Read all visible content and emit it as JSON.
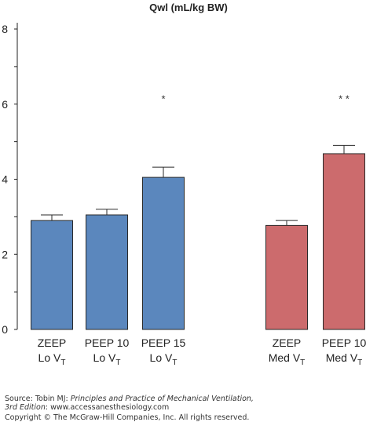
{
  "chart_data": {
    "type": "bar",
    "title": "Qwl (mL/kg BW)",
    "ylim": [
      0,
      8
    ],
    "yticks": [
      0,
      2,
      4,
      6,
      8
    ],
    "grid": false,
    "legend": "none",
    "categories": [
      {
        "line1": "ZEEP",
        "line2": "Lo V",
        "sub": "T"
      },
      {
        "line1": "PEEP 10",
        "line2": "Lo V",
        "sub": "T"
      },
      {
        "line1": "PEEP 15",
        "line2": "Lo V",
        "sub": "T"
      },
      {
        "line1": "ZEEP",
        "line2": "Med V",
        "sub": "T"
      },
      {
        "line1": "PEEP 10",
        "line2": "Med V",
        "sub": "T"
      }
    ],
    "values": [
      2.9,
      3.05,
      4.05,
      2.77,
      4.68
    ],
    "errors": [
      0.15,
      0.15,
      0.27,
      0.13,
      0.22
    ],
    "annotations": [
      "",
      "",
      "*",
      "",
      "* *"
    ],
    "colors": [
      "#5b87bd",
      "#5b87bd",
      "#5b87bd",
      "#cc6b6d",
      "#cc6b6d"
    ],
    "bar_stroke": "#2a2a2a"
  },
  "footer": {
    "source_prefix": "Source: Tobin MJ: ",
    "source_title": "Principles and Practice of Mechanical Ventilation,",
    "edition": "3rd Edition",
    "edition_rest": ": www.accessanesthesiology.com",
    "copyright": "Copyright © The McGraw-Hill Companies, Inc. All rights reserved."
  }
}
